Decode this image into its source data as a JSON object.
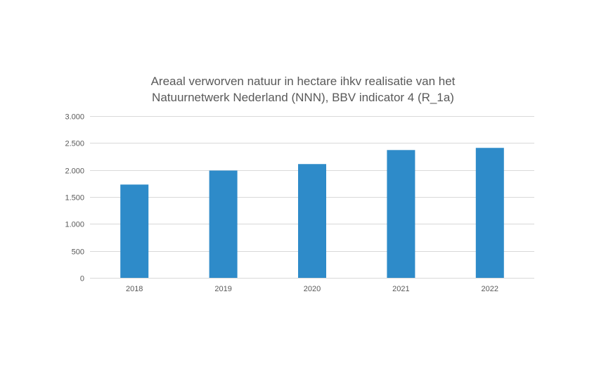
{
  "chart_data": {
    "type": "bar",
    "title_lines": [
      "Areaal verworven natuur in hectare ihkv realisatie van het",
      "Natuurnetwerk Nederland (NNN), BBV indicator 4 (R_1a)"
    ],
    "categories": [
      "2018",
      "2019",
      "2020",
      "2021",
      "2022"
    ],
    "values": [
      1730,
      1990,
      2110,
      2370,
      2410
    ],
    "ylim": [
      0,
      3000
    ],
    "yticks": [
      0,
      500,
      1000,
      1500,
      2000,
      2500,
      3000
    ],
    "ytick_labels": [
      "0",
      "500",
      "1.000",
      "1.500",
      "2.000",
      "2.500",
      "3.000"
    ],
    "grid": true,
    "legend": "none",
    "bar_color": "#2E8BC9",
    "grid_color": "#D9D9D9",
    "text_color": "#595959"
  }
}
